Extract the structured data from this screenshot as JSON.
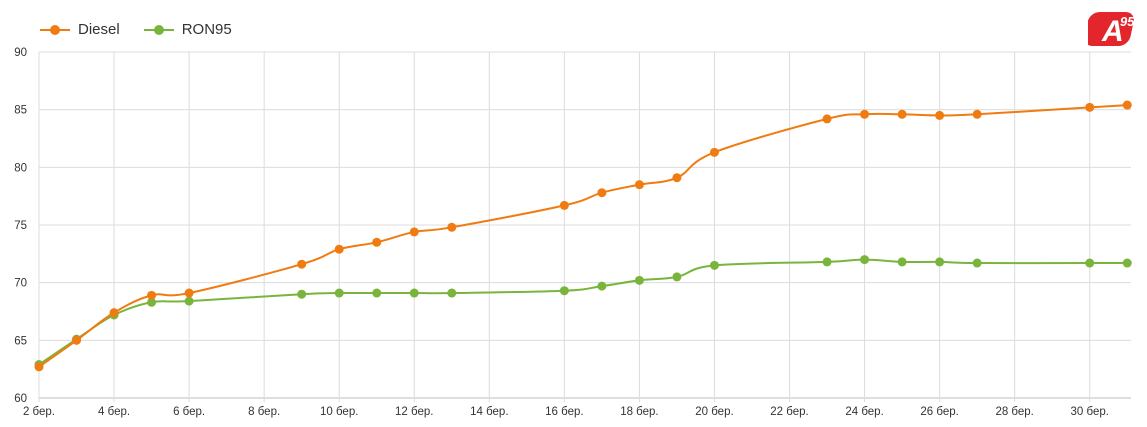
{
  "legend": [
    {
      "name": "Diesel",
      "color": "#f07b10"
    },
    {
      "name": "RON95",
      "color": "#79b53c"
    }
  ],
  "logo": {
    "letter": "A",
    "superscript": "95",
    "color": "#e3262b"
  },
  "chart_data": {
    "type": "line",
    "x_ticks": [
      "2 бер.",
      "4 бер.",
      "6 бер.",
      "8 бер.",
      "10 бер.",
      "12 бер.",
      "14 бер.",
      "16 бер.",
      "18 бер.",
      "20 бер.",
      "22 бер.",
      "24 бер.",
      "26 бер.",
      "28 бер.",
      "30 бер."
    ],
    "x_tick_days": [
      2,
      4,
      6,
      8,
      10,
      12,
      14,
      16,
      18,
      20,
      22,
      24,
      26,
      28,
      30
    ],
    "xlim": [
      2,
      31.1
    ],
    "ylim": [
      60,
      90
    ],
    "y_ticks": [
      60,
      65,
      70,
      75,
      80,
      85,
      90
    ],
    "grid": true,
    "legend_position": "top-left",
    "series": [
      {
        "name": "Diesel",
        "color": "#f07b10",
        "x": [
          2,
          3,
          4,
          5,
          6,
          9,
          10,
          11,
          12,
          13,
          16,
          17,
          18,
          19,
          20,
          23,
          24,
          25,
          26,
          27,
          30,
          31
        ],
        "y": [
          62.7,
          65.0,
          67.4,
          68.9,
          69.1,
          71.6,
          72.9,
          73.5,
          74.4,
          74.8,
          76.7,
          77.8,
          78.5,
          79.1,
          81.3,
          84.2,
          84.6,
          84.6,
          84.5,
          84.6,
          85.2,
          85.4
        ]
      },
      {
        "name": "RON95",
        "color": "#79b53c",
        "x": [
          2,
          3,
          4,
          5,
          6,
          9,
          10,
          11,
          12,
          13,
          16,
          17,
          18,
          19,
          20,
          23,
          24,
          25,
          26,
          27,
          30,
          31
        ],
        "y": [
          62.9,
          65.1,
          67.2,
          68.3,
          68.4,
          69.0,
          69.1,
          69.1,
          69.1,
          69.1,
          69.3,
          69.7,
          70.2,
          70.5,
          71.5,
          71.8,
          72.0,
          71.8,
          71.8,
          71.7,
          71.7,
          71.7
        ]
      }
    ]
  }
}
